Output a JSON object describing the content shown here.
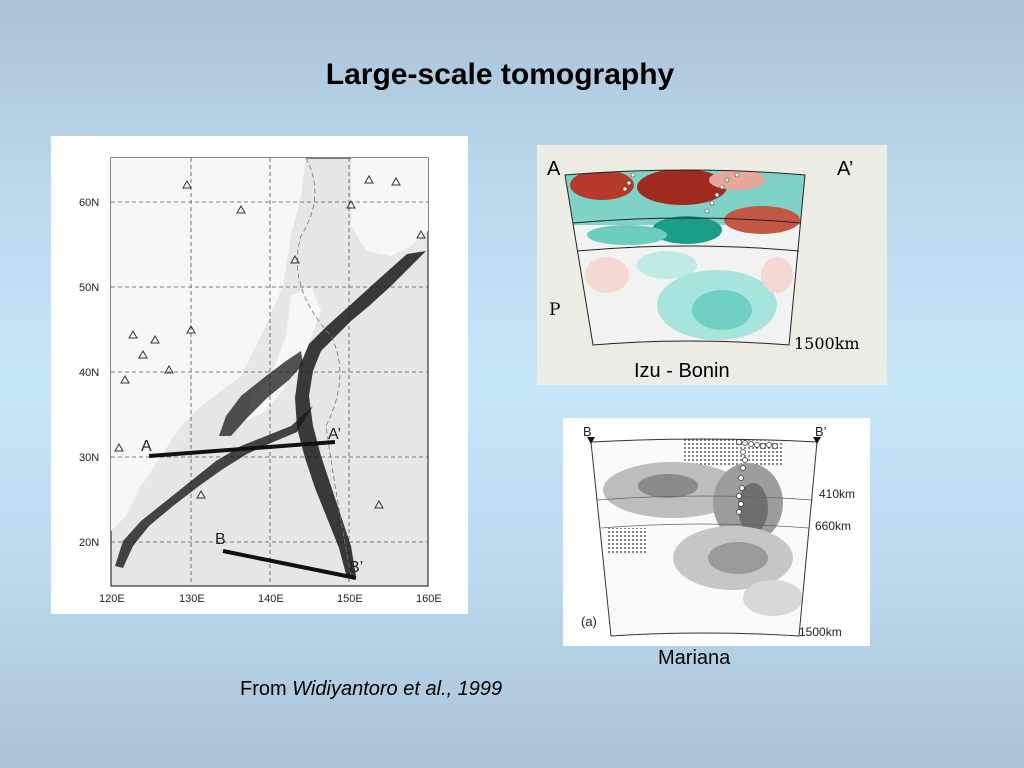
{
  "slide": {
    "title": "Large-scale tomography"
  },
  "map": {
    "lat_labels": [
      "60N",
      "50N",
      "40N",
      "30N",
      "20N"
    ],
    "lon_labels": [
      "120E",
      "130E",
      "140E",
      "150E",
      "160E"
    ],
    "profile_a": {
      "start": "A",
      "end": "A’"
    },
    "profile_b": {
      "start": "B",
      "end": "B’"
    }
  },
  "izu": {
    "left_label": "A",
    "right_label": "A’",
    "wave_label": "P",
    "depth_label": "1500km",
    "caption": "Izu - Bonin"
  },
  "mariana": {
    "left_label": "B",
    "right_label": "B’",
    "depth_410": "410km",
    "depth_660": "660km",
    "depth_bottom": "1500km",
    "panel_tag": "(a)",
    "caption": "Mariana"
  },
  "citation": {
    "prefix": "From",
    "authors": "Widiyantoro et al., 1999"
  }
}
